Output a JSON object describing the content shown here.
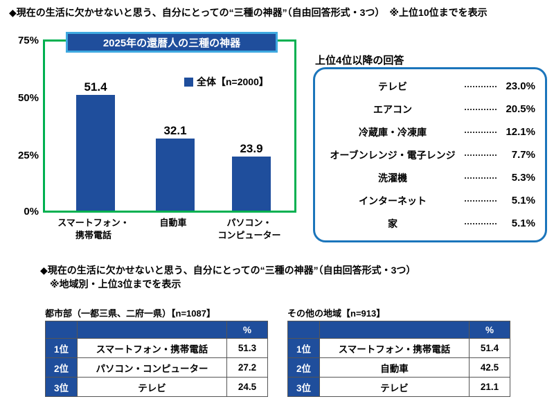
{
  "header": {
    "title": "◆現在の生活に欠かせないと思う、自分にとっての“三種の神器”（自由回答形式・3つ）　※上位10位までを表示"
  },
  "colors": {
    "bar_navy": "#1f4e9c",
    "chart_border_green": "#00b050",
    "chart_title_border_blue": "#3fa9e0",
    "panel_border_blue": "#1b75bb"
  },
  "chart": {
    "legend_label": "全体【n=2000】",
    "categories": [
      {
        "line1": "スマートフォン・",
        "line2": "携帯電話"
      },
      {
        "line1": "自動車",
        "line2": ""
      },
      {
        "line1": "パソコン・",
        "line2": "コンピューター"
      }
    ]
  },
  "chart_data": {
    "type": "bar",
    "title": "2025年の還暦人の三種の神器",
    "categories": [
      "スマートフォン・携帯電話",
      "自動車",
      "パソコン・コンピューター"
    ],
    "values": [
      51.4,
      32.1,
      23.9
    ],
    "legend": [
      "全体【n=2000】"
    ],
    "xlabel": "",
    "ylabel": "",
    "ylim": [
      0,
      75
    ],
    "yticks": [
      "75%",
      "50%",
      "25%",
      "0%"
    ],
    "grid": false,
    "legend_position": "upper right"
  },
  "ranking_panel": {
    "title": "上位4位以降の回答",
    "items": [
      {
        "label": "テレビ",
        "value": "23.0%"
      },
      {
        "label": "エアコン",
        "value": "20.5%"
      },
      {
        "label": "冷蔵庫・冷凍庫",
        "value": "12.1%"
      },
      {
        "label": "オーブンレンジ・電子レンジ",
        "value": "7.7%"
      },
      {
        "label": "洗濯機",
        "value": "5.3%"
      },
      {
        "label": "インターネット",
        "value": "5.1%"
      },
      {
        "label": "家",
        "value": "5.1%"
      }
    ]
  },
  "section2": {
    "line1": "◆現在の生活に欠かせないと思う、自分にとっての“三種の神器”（自由回答形式・3つ）",
    "line2": "※地域別・上位3位までを表示"
  },
  "tables": [
    {
      "title": "都市部（一都三県、二府一県）【n=1087】",
      "percent_header": "%",
      "rows": [
        {
          "rank": "1位",
          "item": "スマートフォン・携帯電話",
          "value": "51.3"
        },
        {
          "rank": "2位",
          "item": "パソコン・コンピューター",
          "value": "27.2"
        },
        {
          "rank": "3位",
          "item": "テレビ",
          "value": "24.5"
        }
      ]
    },
    {
      "title": "その他の地域【n=913】",
      "percent_header": "%",
      "rows": [
        {
          "rank": "1位",
          "item": "スマートフォン・携帯電話",
          "value": "51.4"
        },
        {
          "rank": "2位",
          "item": "自動車",
          "value": "42.5"
        },
        {
          "rank": "3位",
          "item": "テレビ",
          "value": "21.1"
        }
      ]
    }
  ]
}
